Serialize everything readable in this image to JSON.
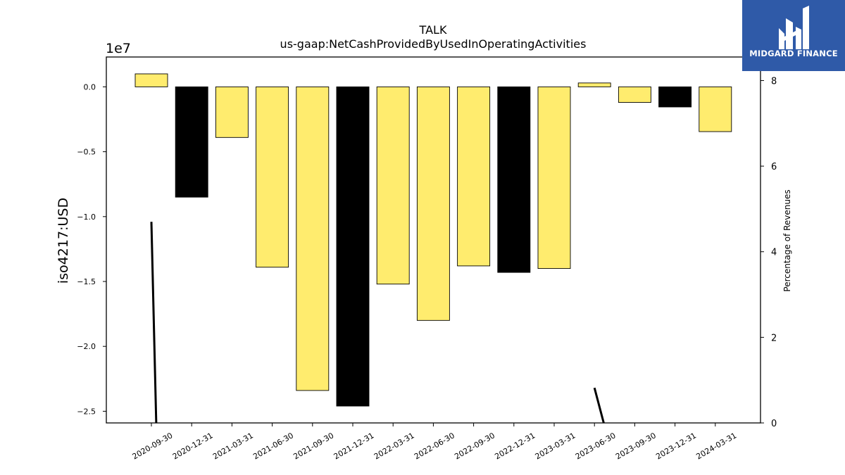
{
  "brand": {
    "name": "MIDGARD FINANCE",
    "logo_color": "#2f5aa8",
    "icon": "midgard-logo-icon"
  },
  "chart_data": {
    "type": "bar",
    "title": "TALK",
    "subtitle": "us-gaap:NetCashProvidedByUsedInOperatingActivities",
    "ylabel": "iso4217:USD",
    "y_offset_label": "1e7",
    "y2label": "Percentage of Revenues",
    "categories": [
      "2020-09-30",
      "2020-12-31",
      "2021-03-31",
      "2021-06-30",
      "2021-09-30",
      "2021-12-31",
      "2022-03-31",
      "2022-06-30",
      "2022-09-30",
      "2022-12-31",
      "2023-03-31",
      "2023-06-30",
      "2023-09-30",
      "2023-12-31",
      "2024-03-31"
    ],
    "values": [
      1000000,
      -8500000,
      -3900000,
      -13900000,
      -23400000,
      -24600000,
      -15200000,
      -18000000,
      -13800000,
      -14300000,
      -14000000,
      300000,
      -1200000,
      -1550000,
      -3450000
    ],
    "bar_colors": [
      "#ffec6e",
      "#000000",
      "#ffec6e",
      "#ffec6e",
      "#ffec6e",
      "#000000",
      "#ffec6e",
      "#ffec6e",
      "#ffec6e",
      "#000000",
      "#ffec6e",
      "#ffec6e",
      "#ffec6e",
      "#000000",
      "#ffec6e"
    ],
    "ylim": [
      -25900000,
      2300000
    ],
    "yticks": [
      0,
      -5000000,
      -10000000,
      -15000000,
      -20000000,
      -25000000
    ],
    "ytick_labels": [
      "0.0",
      "−0.5",
      "−1.0",
      "−1.5",
      "−2.0",
      "−2.5"
    ],
    "y2lim": [
      0,
      8.55
    ],
    "y2ticks": [
      0,
      2,
      4,
      6,
      8
    ],
    "y2tick_labels": [
      "0",
      "2",
      "4",
      "6",
      "8"
    ],
    "line_series": [
      {
        "x": [
          0,
          0.12
        ],
        "values": [
          4.7,
          0
        ]
      },
      {
        "x": [
          11,
          11.23
        ],
        "values": [
          0.82,
          0
        ]
      }
    ],
    "colors": {
      "positive_bar": "#ffec6e",
      "negative_bar": "#000000",
      "line": "#000000"
    },
    "grid": false
  }
}
